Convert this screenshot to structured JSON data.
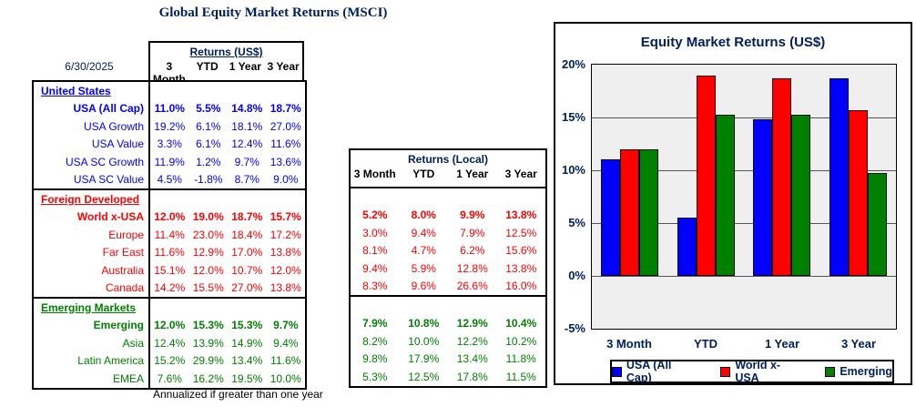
{
  "title": "Global Equity Market Returns (MSCI)",
  "as_of_date": "6/30/2025",
  "footnote": "Annualized if greater than one year",
  "colors": {
    "navy": "#002060",
    "us_blue": "#0000ff",
    "foreign_red": "#ff0000",
    "emerging_green": "#008000",
    "plot_background": "#efefef"
  },
  "usd_table": {
    "header": "Returns (US$)",
    "columns": [
      "3 Month",
      "YTD",
      "1 Year",
      "3 Year"
    ],
    "sections": [
      {
        "name": "United States",
        "color": "#0000ff",
        "rows": [
          {
            "label": "USA (All Cap)",
            "bold": true,
            "values": [
              "11.0%",
              "5.5%",
              "14.8%",
              "18.7%"
            ]
          },
          {
            "label": "USA Growth",
            "bold": false,
            "values": [
              "19.2%",
              "6.1%",
              "18.1%",
              "27.0%"
            ]
          },
          {
            "label": "USA Value",
            "bold": false,
            "values": [
              "3.3%",
              "6.1%",
              "12.4%",
              "11.6%"
            ]
          },
          {
            "label": "USA SC Growth",
            "bold": false,
            "values": [
              "11.9%",
              "1.2%",
              "9.7%",
              "13.6%"
            ]
          },
          {
            "label": "USA SC Value",
            "bold": false,
            "values": [
              "4.5%",
              "-1.8%",
              "8.7%",
              "9.0%"
            ]
          }
        ]
      },
      {
        "name": "Foreign Developed",
        "color": "#ff0000",
        "rows": [
          {
            "label": "World x-USA",
            "bold": true,
            "values": [
              "12.0%",
              "19.0%",
              "18.7%",
              "15.7%"
            ]
          },
          {
            "label": "Europe",
            "bold": false,
            "values": [
              "11.4%",
              "23.0%",
              "18.4%",
              "17.2%"
            ]
          },
          {
            "label": "Far East",
            "bold": false,
            "values": [
              "11.6%",
              "12.9%",
              "17.0%",
              "13.8%"
            ]
          },
          {
            "label": "Australia",
            "bold": false,
            "values": [
              "15.1%",
              "12.0%",
              "10.7%",
              "12.0%"
            ]
          },
          {
            "label": "Canada",
            "bold": false,
            "values": [
              "14.2%",
              "15.5%",
              "27.0%",
              "13.8%"
            ]
          }
        ]
      },
      {
        "name": "Emerging Markets",
        "color": "#008000",
        "rows": [
          {
            "label": "Emerging",
            "bold": true,
            "values": [
              "12.0%",
              "15.3%",
              "15.3%",
              "9.7%"
            ]
          },
          {
            "label": "Asia",
            "bold": false,
            "values": [
              "12.4%",
              "13.9%",
              "14.9%",
              "9.4%"
            ]
          },
          {
            "label": "Latin America",
            "bold": false,
            "values": [
              "15.2%",
              "29.9%",
              "13.4%",
              "11.6%"
            ]
          },
          {
            "label": "EMEA",
            "bold": false,
            "values": [
              "7.6%",
              "16.2%",
              "19.5%",
              "10.0%"
            ]
          }
        ]
      }
    ]
  },
  "local_table": {
    "header": "Returns (Local)",
    "columns": [
      "3 Month",
      "YTD",
      "1 Year",
      "3 Year"
    ],
    "sections": [
      {
        "name": "Foreign Developed",
        "color": "#ff0000",
        "rows": [
          {
            "label": "World x-USA",
            "bold": true,
            "values": [
              "5.2%",
              "8.0%",
              "9.9%",
              "13.8%"
            ]
          },
          {
            "label": "Europe",
            "bold": false,
            "values": [
              "3.0%",
              "9.4%",
              "7.9%",
              "12.5%"
            ]
          },
          {
            "label": "Far East",
            "bold": false,
            "values": [
              "8.1%",
              "4.7%",
              "6.2%",
              "15.6%"
            ]
          },
          {
            "label": "Australia",
            "bold": false,
            "values": [
              "9.4%",
              "5.9%",
              "12.8%",
              "13.8%"
            ]
          },
          {
            "label": "Canada",
            "bold": false,
            "values": [
              "8.3%",
              "9.6%",
              "26.6%",
              "16.0%"
            ]
          }
        ]
      },
      {
        "name": "Emerging Markets",
        "color": "#008000",
        "rows": [
          {
            "label": "Emerging",
            "bold": true,
            "values": [
              "7.9%",
              "10.8%",
              "12.9%",
              "10.4%"
            ]
          },
          {
            "label": "Asia",
            "bold": false,
            "values": [
              "8.2%",
              "10.0%",
              "12.2%",
              "10.2%"
            ]
          },
          {
            "label": "Latin America",
            "bold": false,
            "values": [
              "9.8%",
              "17.9%",
              "13.4%",
              "11.8%"
            ]
          },
          {
            "label": "EMEA",
            "bold": false,
            "values": [
              "5.3%",
              "12.5%",
              "17.8%",
              "11.5%"
            ]
          }
        ]
      }
    ]
  },
  "chart_data": {
    "type": "bar",
    "title": "Equity Market Returns (US$)",
    "categories": [
      "3 Month",
      "YTD",
      "1 Year",
      "3 Year"
    ],
    "series": [
      {
        "name": "USA (All Cap)",
        "color": "#0000ff",
        "values": [
          11.0,
          5.5,
          14.8,
          18.7
        ]
      },
      {
        "name": "World x-USA",
        "color": "#ff0000",
        "values": [
          12.0,
          19.0,
          18.7,
          15.7
        ]
      },
      {
        "name": "Emerging",
        "color": "#008000",
        "values": [
          12.0,
          15.3,
          15.3,
          9.7
        ]
      }
    ],
    "ylim": [
      -5,
      20
    ],
    "ytick_step": 5,
    "ytick_labels": [
      "20%",
      "15%",
      "10%",
      "5%",
      "0%",
      "-5%"
    ],
    "grid": true,
    "legend_position": "bottom"
  }
}
